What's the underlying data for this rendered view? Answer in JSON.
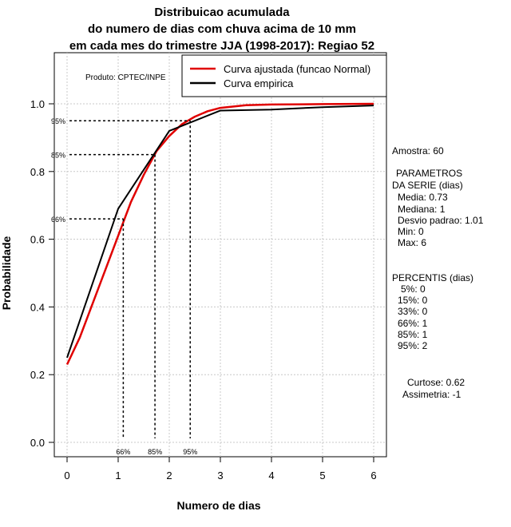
{
  "chart_data": {
    "type": "line",
    "title_lines": [
      "Distribuicao acumulada",
      "do numero de dias com chuva acima de 10 mm",
      "em cada mes do trimestre JJA (1998-2017): Regiao 52"
    ],
    "xlabel": "Numero de dias",
    "ylabel": "Probabilidade",
    "xlim": [
      -0.25,
      6.25
    ],
    "ylim": [
      -0.04,
      1.15
    ],
    "x_ticks": [
      0,
      1,
      2,
      3,
      4,
      5,
      6
    ],
    "y_ticks": [
      "0.0",
      "0.2",
      "0.4",
      "0.6",
      "0.8",
      "1.0"
    ],
    "grid": true,
    "legend_position": "top-right",
    "product_label": "Produto: CPTEC/INPE",
    "series": [
      {
        "name": "Curva ajustada (funcao Normal)",
        "color": "#e00000",
        "x": [
          0,
          0.25,
          0.5,
          0.75,
          1,
          1.25,
          1.5,
          1.75,
          2,
          2.25,
          2.5,
          2.75,
          3,
          3.5,
          4,
          5,
          6
        ],
        "y": [
          0.23,
          0.31,
          0.41,
          0.51,
          0.61,
          0.71,
          0.79,
          0.86,
          0.905,
          0.94,
          0.962,
          0.978,
          0.988,
          0.996,
          0.998,
          0.999,
          1.0
        ]
      },
      {
        "name": "Curva empirica",
        "color": "#000000",
        "x": [
          0,
          1,
          2,
          3,
          4,
          5,
          6
        ],
        "y": [
          0.25,
          0.69,
          0.92,
          0.98,
          0.983,
          0.99,
          0.995
        ]
      }
    ],
    "percentile_markers": [
      {
        "label": "66%",
        "y": 0.66,
        "x": 1.1
      },
      {
        "label": "85%",
        "y": 0.85,
        "x": 1.72
      },
      {
        "label": "95%",
        "y": 0.95,
        "x": 2.41
      }
    ]
  },
  "stats": {
    "amostra": "Amostra: 60",
    "parametros_title_1": "PARAMETROS",
    "parametros_title_2": "DA SERIE (dias)",
    "media": "Media: 0.73",
    "mediana": "Mediana: 1",
    "desvio": "Desvio padrao: 1.01",
    "min": "Min: 0",
    "max": "Max: 6",
    "percentis_title": "PERCENTIS (dias)",
    "p5": "5%: 0",
    "p15": "15%: 0",
    "p33": "33%: 0",
    "p66": "66%: 1",
    "p85": "85%: 1",
    "p95": "95%: 2",
    "curtose": "Curtose: 0.62",
    "assimetria": "Assimetria: -1"
  }
}
